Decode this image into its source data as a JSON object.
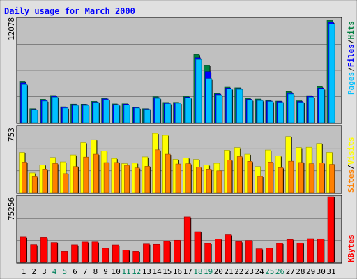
{
  "chart_data": [
    {
      "type": "bar",
      "title": "Daily usage for March 2000",
      "ylabel_top": "12078",
      "series": [
        {
          "name": "Hits",
          "color": "#008040",
          "values": [
            4795,
            1629,
            2707,
            3147,
            1845,
            2157,
            2150,
            2464,
            2853,
            2180,
            2191,
            1809,
            1628,
            3012,
            2345,
            2355,
            3031,
            7864,
            6650,
            3384,
            4104,
            4033,
            2795,
            2737,
            2575,
            2493,
            3601,
            2534,
            3131,
            4159,
            11805
          ]
        },
        {
          "name": "Files",
          "color": "#0000ff",
          "values": [
            4600,
            1550,
            2600,
            3050,
            1800,
            2100,
            2100,
            2400,
            2750,
            2100,
            2150,
            1750,
            1600,
            2900,
            2300,
            2300,
            2950,
            7500,
            5900,
            3300,
            4000,
            3950,
            2700,
            2650,
            2500,
            2450,
            3450,
            2450,
            3050,
            4000,
            11600
          ]
        },
        {
          "name": "Pages",
          "color": "#00c0ff",
          "values": [
            4400,
            1500,
            2500,
            2950,
            1700,
            2000,
            2000,
            2350,
            2650,
            2050,
            2050,
            1700,
            1550,
            2800,
            2200,
            2250,
            2850,
            7300,
            5100,
            3200,
            3900,
            3850,
            2600,
            2550,
            2450,
            2350,
            3300,
            2350,
            2950,
            3900,
            11400
          ]
        }
      ]
    },
    {
      "type": "bar",
      "ylabel_top": "753",
      "series": [
        {
          "name": "Visits",
          "color": "#ffff00",
          "values": [
            460,
            225,
            318,
            402,
            352,
            432,
            573,
            607,
            477,
            391,
            332,
            338,
            409,
            680,
            657,
            381,
            398,
            380,
            315,
            336,
            486,
            515,
            440,
            298,
            488,
            420,
            643,
            516,
            519,
            563,
            461
          ]
        },
        {
          "name": "Sites",
          "color": "#ff8000",
          "values": [
            349,
            181,
            262,
            333,
            217,
            298,
            407,
            440,
            344,
            345,
            312,
            283,
            301,
            490,
            440,
            328,
            331,
            291,
            262,
            250,
            373,
            413,
            358,
            184,
            350,
            285,
            359,
            345,
            331,
            340,
            324
          ]
        }
      ]
    },
    {
      "type": "bar",
      "ylabel_top": "75256",
      "ylabel_side": "KBytes",
      "series": [
        {
          "name": "KBytes",
          "color": "#ff0000",
          "values": [
            28900,
            20300,
            28500,
            22700,
            12500,
            20100,
            23300,
            23400,
            16100,
            20000,
            14100,
            12500,
            21000,
            20600,
            24100,
            25400,
            52100,
            35200,
            21600,
            26800,
            31600,
            23700,
            25100,
            15500,
            16200,
            21700,
            26200,
            22200,
            27200,
            27000,
            75256
          ]
        }
      ]
    }
  ],
  "x_labels": [
    "1",
    "2",
    "3",
    "4",
    "5",
    "6",
    "7",
    "8",
    "9",
    "10",
    "11",
    "12",
    "13",
    "14",
    "15",
    "16",
    "17",
    "18",
    "19",
    "20",
    "21",
    "22",
    "23",
    "24",
    "25",
    "26",
    "27",
    "28",
    "29",
    "30",
    "31"
  ],
  "weekend_days": [
    4,
    5,
    11,
    12,
    18,
    19,
    25,
    26
  ],
  "colors": {
    "plot_bg": "#c0c0c0",
    "outer_bg": "#e0e0e0",
    "title": "#0000ff",
    "weekend_label": "#00805c",
    "weekday_label": "#000000",
    "grid": "#808080"
  }
}
